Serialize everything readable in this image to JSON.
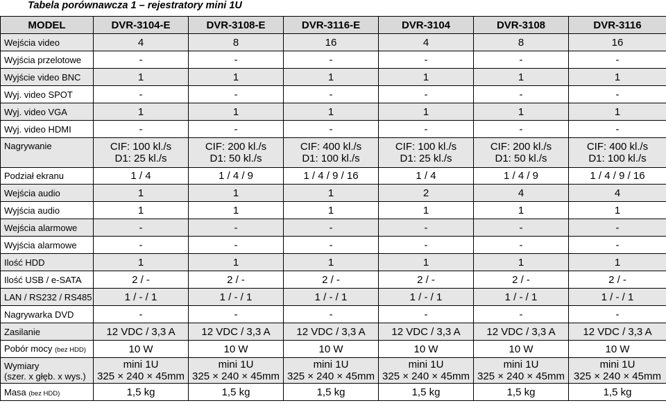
{
  "title": "Tabela porównawcza 1 – rejestratory mini 1U",
  "header": [
    "MODEL",
    "DVR-3104-E",
    "DVR-3108-E",
    "DVR-3116-E",
    "DVR-3104",
    "DVR-3108",
    "DVR-3116"
  ],
  "rows": [
    {
      "label": "Wejścia video",
      "values": [
        "4",
        "8",
        "16",
        "4",
        "8",
        "16"
      ]
    },
    {
      "label": "Wyjścia przelotowe",
      "values": [
        "-",
        "-",
        "-",
        "-",
        "-",
        "-"
      ]
    },
    {
      "label": "Wyjście video BNC",
      "values": [
        "1",
        "1",
        "1",
        "1",
        "1",
        "1"
      ]
    },
    {
      "label": "Wyj. video SPOT",
      "values": [
        "-",
        "-",
        "-",
        "-",
        "-",
        "-"
      ]
    },
    {
      "label": "Wyj. video VGA",
      "values": [
        "1",
        "1",
        "1",
        "1",
        "1",
        "1"
      ]
    },
    {
      "label": "Wyj. video HDMI",
      "values": [
        "-",
        "-",
        "-",
        "-",
        "-",
        "-"
      ]
    },
    {
      "label": "Nagrywanie",
      "values": [
        [
          "CIF: 100 kl./s",
          "D1: 25 kl./s"
        ],
        [
          "CIF: 200 kl./s",
          "D1: 50 kl./s"
        ],
        [
          "CIF: 400 kl./s",
          "D1: 100 kl./s"
        ],
        [
          "CIF: 100 kl./s",
          "D1: 25 kl./s"
        ],
        [
          "CIF: 200 kl./s",
          "D1: 50 kl./s"
        ],
        [
          "CIF: 400 kl./s",
          "D1: 100 kl./s"
        ]
      ]
    },
    {
      "label": "Podział ekranu",
      "values": [
        "1 / 4",
        "1 / 4 / 9",
        "1 / 4 / 9 / 16",
        "1 / 4",
        "1 / 4 / 9",
        "1 / 4 / 9 / 16"
      ]
    },
    {
      "label": "Wejścia audio",
      "values": [
        "1",
        "1",
        "1",
        "2",
        "4",
        "4"
      ]
    },
    {
      "label": "Wyjścia audio",
      "values": [
        "1",
        "1",
        "1",
        "1",
        "1",
        "1"
      ]
    },
    {
      "label": "Wejścia alarmowe",
      "values": [
        "-",
        "-",
        "-",
        "-",
        "-",
        "-"
      ]
    },
    {
      "label": "Wyjścia alarmowe",
      "values": [
        "-",
        "-",
        "-",
        "-",
        "-",
        "-"
      ]
    },
    {
      "label": "Ilość HDD",
      "values": [
        "1",
        "1",
        "1",
        "1",
        "1",
        "1"
      ]
    },
    {
      "label": "Ilość USB / e-SATA",
      "values": [
        "2 / -",
        "2 / -",
        "2 / -",
        "2 / -",
        "2 / -",
        "2 / -"
      ]
    },
    {
      "label": "LAN / RS232 / RS485",
      "values": [
        "1 / - / 1",
        "1 / - / 1",
        "1 / - / 1",
        "1 / - / 1",
        "1 / - / 1",
        "1 / - / 1"
      ]
    },
    {
      "label": "Nagrywarka DVD",
      "values": [
        "-",
        "-",
        "-",
        "-",
        "-",
        "-"
      ]
    },
    {
      "label": "Zasilanie",
      "values": [
        "12 VDC / 3,3 A",
        "12 VDC / 3,3 A",
        "12 VDC / 3,3 A",
        "12 VDC / 3,3 A",
        "12 VDC / 3,3 A",
        "12 VDC / 3,3 A"
      ]
    },
    {
      "label": "Pobór mocy",
      "note": "(bez HDD)",
      "values": [
        "10 W",
        "10 W",
        "10 W",
        "10 W",
        "10 W",
        "10 W"
      ]
    },
    {
      "label": "Wymiary",
      "label2": "(szer. x głęb. x wys.)",
      "values": [
        [
          "mini 1U",
          "325 × 240 × 45mm"
        ],
        [
          "mini 1U",
          "325 × 240 × 45mm"
        ],
        [
          "mini 1U",
          "325 × 240 × 45mm"
        ],
        [
          "mini 1U",
          "325 × 240 × 45mm"
        ],
        [
          "mini 1U",
          "325 × 240 × 45mm"
        ],
        [
          "mini 1U",
          "325 × 240 × 45mm"
        ]
      ]
    },
    {
      "label": "Masa",
      "note": "(bez HDD)",
      "values": [
        "1,5 kg",
        "1,5 kg",
        "1,5 kg",
        "1,5 kg",
        "1,5 kg",
        "1,5 kg"
      ]
    }
  ]
}
